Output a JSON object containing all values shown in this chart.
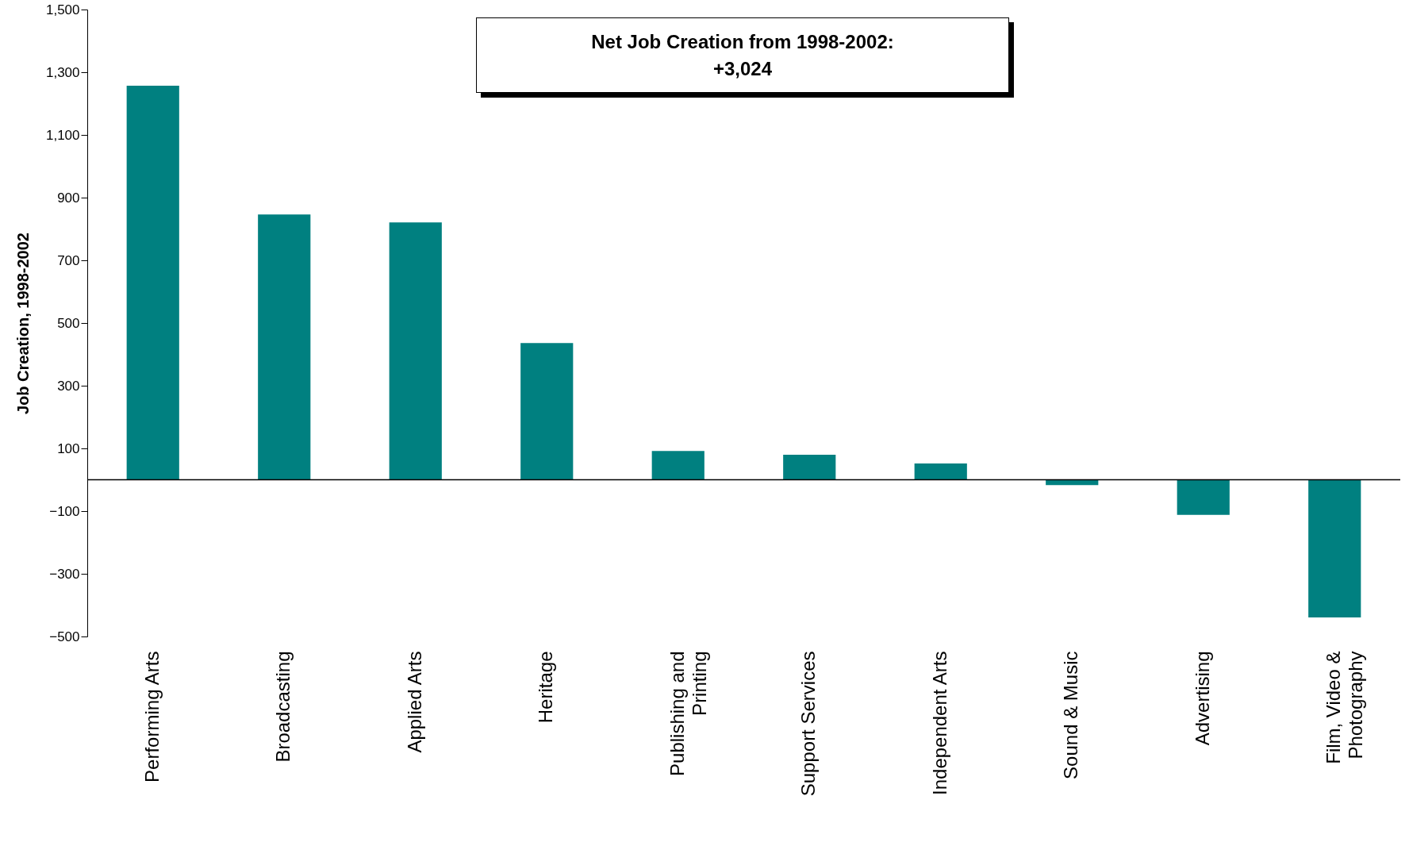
{
  "chart_data": {
    "type": "bar",
    "ylabel": "Job Creation, 1998-2002",
    "categories": [
      "Performing Arts",
      "Broadcasting",
      "Applied Arts",
      "Heritage",
      "Publishing and Printing",
      "Support Services",
      "Independent Arts",
      "Sound & Music",
      "Advertising",
      "Film, Video & Photography"
    ],
    "values": [
      1257,
      846,
      821,
      436,
      92,
      80,
      52,
      -17,
      -112,
      -439
    ],
    "color": "#008080",
    "ylim": [
      -500,
      1500
    ],
    "yticks": [
      -500,
      -300,
      -100,
      100,
      300,
      500,
      700,
      900,
      {
        "value": 1100,
        "label": "1,100"
      },
      {
        "value": 1300,
        "label": "1,300"
      },
      {
        "value": 1500,
        "label": "1,500"
      }
    ],
    "grid": false,
    "annotations": [
      "Net Job Creation from 1998-2002:\n+3,024"
    ]
  }
}
